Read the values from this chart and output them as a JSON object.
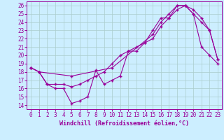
{
  "xlabel": "Windchill (Refroidissement éolien,°C)",
  "bg_color": "#cceeff",
  "line_color": "#990099",
  "grid_color": "#aacccc",
  "xlim": [
    -0.5,
    23.5
  ],
  "ylim": [
    13.5,
    26.5
  ],
  "xticks": [
    0,
    1,
    2,
    3,
    4,
    5,
    6,
    7,
    8,
    9,
    10,
    11,
    12,
    13,
    14,
    15,
    16,
    17,
    18,
    19,
    20,
    21,
    22,
    23
  ],
  "yticks": [
    14,
    15,
    16,
    17,
    18,
    19,
    20,
    21,
    22,
    23,
    24,
    25,
    26
  ],
  "line1_x": [
    0,
    1,
    2,
    3,
    4,
    5,
    6,
    7,
    8,
    9,
    10,
    11,
    12,
    13,
    14,
    15,
    16,
    17,
    18,
    19,
    20,
    21,
    22,
    23
  ],
  "line1_y": [
    18.5,
    18.0,
    16.5,
    16.0,
    16.0,
    14.2,
    14.5,
    15.0,
    18.2,
    16.5,
    17.0,
    17.5,
    20.5,
    20.5,
    21.5,
    23.0,
    24.5,
    24.5,
    26.0,
    26.0,
    25.5,
    24.5,
    23.0,
    19.5
  ],
  "line2_x": [
    0,
    1,
    2,
    3,
    4,
    5,
    6,
    7,
    8,
    9,
    10,
    11,
    12,
    13,
    14,
    15,
    16,
    17,
    18,
    19,
    20,
    21,
    22,
    23
  ],
  "line2_y": [
    18.5,
    18.0,
    16.5,
    16.5,
    16.5,
    16.2,
    16.5,
    17.0,
    17.5,
    18.0,
    19.0,
    20.0,
    20.5,
    21.0,
    21.5,
    22.0,
    23.5,
    24.5,
    25.5,
    26.0,
    25.0,
    21.0,
    20.0,
    19.0
  ],
  "line3_x": [
    0,
    1,
    5,
    10,
    15,
    16,
    17,
    18,
    19,
    20,
    21,
    22,
    23
  ],
  "line3_y": [
    18.5,
    18.0,
    17.5,
    18.5,
    22.5,
    24.0,
    25.0,
    26.0,
    26.0,
    25.0,
    24.0,
    23.0,
    19.5
  ],
  "tick_fontsize": 5.5,
  "xlabel_fontsize": 6.0
}
